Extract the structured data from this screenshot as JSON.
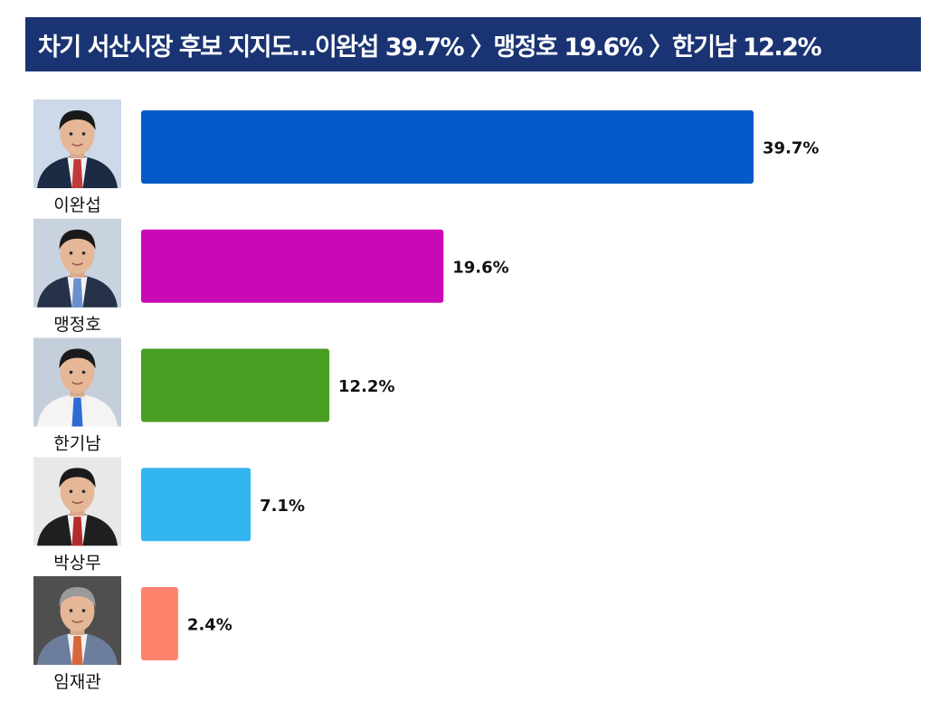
{
  "header": {
    "title": "차기 서산시장 후보 지지도…이완섭 39.7% 〉맹정호 19.6% 〉한기남 12.2%"
  },
  "colors": {
    "title_background": "#1a3473",
    "title_text": "#ffffff"
  },
  "chart_data": {
    "type": "bar",
    "orientation": "horizontal",
    "categories": [
      "이완섭",
      "맹정호",
      "한기남",
      "박상무",
      "임재관"
    ],
    "values": [
      39.7,
      19.6,
      12.2,
      7.1,
      2.4
    ],
    "value_labels": [
      "39.7%",
      "19.6%",
      "12.2%",
      "7.1%",
      "2.4%"
    ],
    "colors": [
      "#045ac8",
      "#c909b6",
      "#489e20",
      "#31b4f0",
      "#ff826c"
    ],
    "title": "차기 서산시장 후보 지지도…이완섭 39.7% 〉맹정호 19.6% 〉한기남 12.2%",
    "xlabel": "",
    "ylabel": "",
    "xlim": [
      0,
      39.7
    ],
    "grid": false,
    "legend": "none"
  }
}
